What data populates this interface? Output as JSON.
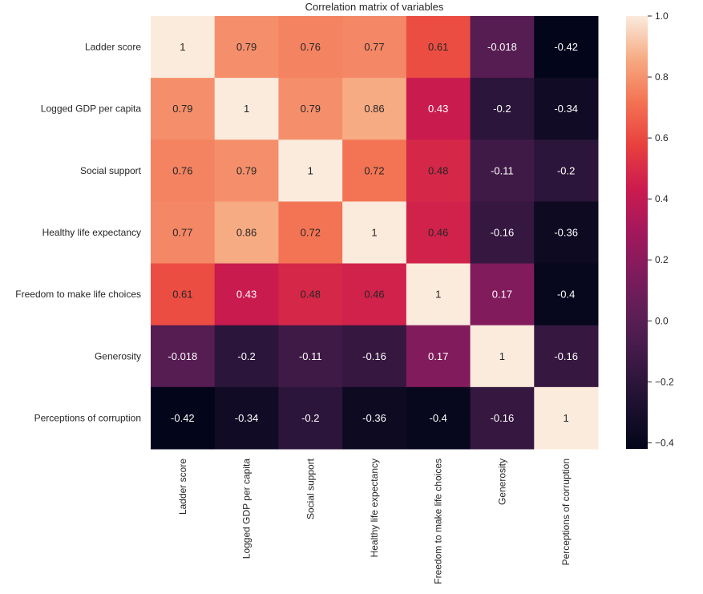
{
  "chart_data": {
    "type": "heatmap",
    "title": "Correlation matrix of variables",
    "xlabel": "",
    "ylabel": "",
    "row_labels": [
      "Ladder score",
      "Logged GDP per capita",
      "Social support",
      "Healthy life expectancy",
      "Freedom to make life choices",
      "Generosity",
      "Perceptions of corruption"
    ],
    "col_labels": [
      "Ladder score",
      "Logged GDP per capita",
      "Social support",
      "Healthy life expectancy",
      "Freedom to make life choices",
      "Generosity",
      "Perceptions of corruption"
    ],
    "values": [
      [
        1,
        0.79,
        0.76,
        0.77,
        0.61,
        -0.018,
        -0.42
      ],
      [
        0.79,
        1,
        0.79,
        0.86,
        0.43,
        -0.2,
        -0.34
      ],
      [
        0.76,
        0.79,
        1,
        0.72,
        0.48,
        -0.11,
        -0.2
      ],
      [
        0.77,
        0.86,
        0.72,
        1,
        0.46,
        -0.16,
        -0.36
      ],
      [
        0.61,
        0.43,
        0.48,
        0.46,
        1,
        0.17,
        -0.4
      ],
      [
        -0.018,
        -0.2,
        -0.11,
        -0.16,
        0.17,
        1,
        -0.16
      ],
      [
        -0.42,
        -0.34,
        -0.2,
        -0.36,
        -0.4,
        -0.16,
        1
      ]
    ],
    "annotations": [
      [
        "1",
        "0.79",
        "0.76",
        "0.77",
        "0.61",
        "-0.018",
        "-0.42"
      ],
      [
        "0.79",
        "1",
        "0.79",
        "0.86",
        "0.43",
        "-0.2",
        "-0.34"
      ],
      [
        "0.76",
        "0.79",
        "1",
        "0.72",
        "0.48",
        "-0.11",
        "-0.2"
      ],
      [
        "0.77",
        "0.86",
        "0.72",
        "1",
        "0.46",
        "-0.16",
        "-0.36"
      ],
      [
        "0.61",
        "0.43",
        "0.48",
        "0.46",
        "1",
        "0.17",
        "-0.4"
      ],
      [
        "-0.018",
        "-0.2",
        "-0.11",
        "-0.16",
        "0.17",
        "1",
        "-0.16"
      ],
      [
        "-0.42",
        "-0.34",
        "-0.2",
        "-0.36",
        "-0.4",
        "-0.16",
        "1"
      ]
    ],
    "colormap": "rocket",
    "colorbar": {
      "range": [
        -0.42,
        1.0
      ],
      "ticks": [
        1.0,
        0.8,
        0.6,
        0.4,
        0.2,
        0.0,
        -0.2,
        -0.4
      ],
      "tick_labels": [
        "1.0",
        "0.8",
        "0.6",
        "0.4",
        "0.2",
        "0.0",
        "−0.2",
        "−0.4"
      ],
      "placement": "right"
    },
    "grid": false
  }
}
